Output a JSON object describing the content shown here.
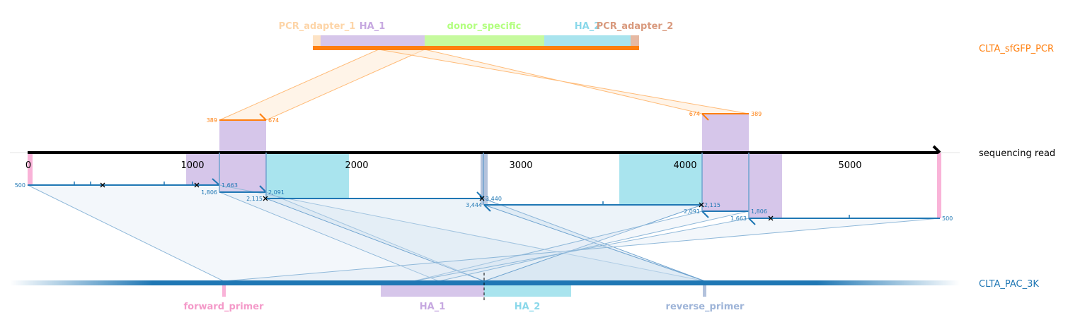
{
  "tracks": {
    "top": {
      "name": "CLTA_sfGFP_PCR",
      "color": "#ff7f0e"
    },
    "read": {
      "name": "sequencing read",
      "color": "#000000"
    },
    "bottom": {
      "name": "CLTA_PAC_3K",
      "color": "#1f77b4"
    }
  },
  "top_features": [
    {
      "name": "PCR_adapter_1",
      "color": "#fdd5a8"
    },
    {
      "name": "HA_1",
      "color": "#c6a8e0"
    },
    {
      "name": "donor_specific",
      "color": "#b3ff80"
    },
    {
      "name": "HA_2",
      "color": "#8ad8ea"
    },
    {
      "name": "PCR_adapter_2",
      "color": "#d99a7e"
    }
  ],
  "bottom_features": [
    {
      "name": "forward_primer",
      "color": "#f49ac9"
    },
    {
      "name": "HA_1",
      "color": "#c6a8e0"
    },
    {
      "name": "HA_2",
      "color": "#8ad8ea"
    },
    {
      "name": "reverse_primer",
      "color": "#9eb4d8"
    }
  ],
  "axis_ticks": [
    "0",
    "1000",
    "2000",
    "3000",
    "4000",
    "5000"
  ],
  "alignment_labels": {
    "top_left_start": "389",
    "top_left_end": "674",
    "top_right_start": "674",
    "top_right_end": "389",
    "seg1_start": "500",
    "seg1_end": "1,663",
    "seg2_start": "1,806",
    "seg2_end": "2,091",
    "seg3_start": "2,115",
    "seg3_end": "3,440",
    "seg4_start": "3,444",
    "seg4_end": "2,115",
    "seg5_start": "2,091",
    "seg5_end": "1,806",
    "seg6_start": "1,663",
    "seg6_end": "500"
  }
}
